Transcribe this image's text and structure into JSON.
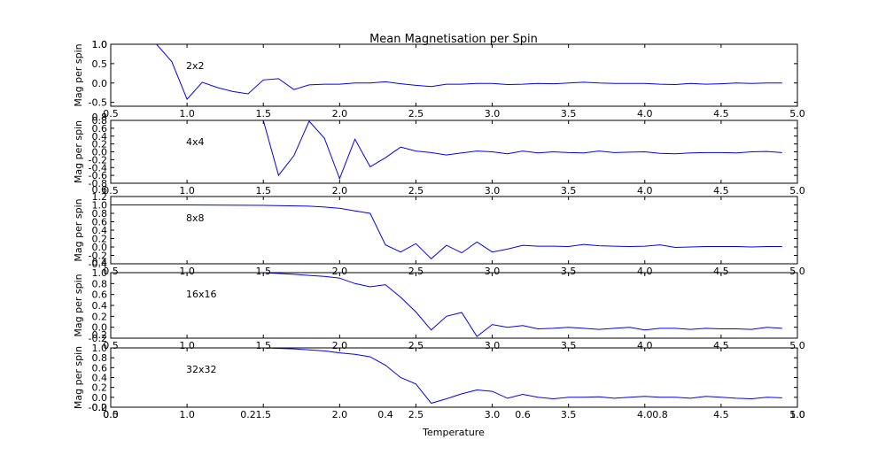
{
  "title": "Mean Magnetisation per Spin",
  "xlabel": "Temperature",
  "chart_data": [
    {
      "type": "line",
      "annotation": "2x2",
      "ylabel": "Mag per spin",
      "xlim": [
        0.5,
        5.0
      ],
      "ylim": [
        -0.6,
        1.0
      ],
      "xticks": [
        "0.5",
        "1.0",
        "1.5",
        "2.0",
        "2.5",
        "3.0",
        "3.5",
        "4.0",
        "4.5",
        "5.0"
      ],
      "yticks": [
        "-0.5",
        "0.0",
        "0.5",
        "1.0"
      ],
      "x": [
        0.5,
        0.6,
        0.7,
        0.8,
        0.9,
        1.0,
        1.1,
        1.2,
        1.3,
        1.4,
        1.5,
        1.6,
        1.7,
        1.8,
        1.9,
        2.0,
        2.1,
        2.2,
        2.3,
        2.4,
        2.5,
        2.6,
        2.7,
        2.8,
        2.9,
        3.0,
        3.1,
        3.2,
        3.3,
        3.4,
        3.5,
        3.6,
        3.7,
        3.8,
        3.9,
        4.0,
        4.1,
        4.2,
        4.3,
        4.4,
        4.5,
        4.6,
        4.7,
        4.8,
        4.9
      ],
      "y": [
        1.0,
        1.0,
        1.0,
        1.0,
        0.55,
        -0.42,
        0.02,
        -0.12,
        -0.22,
        -0.28,
        0.08,
        0.11,
        -0.17,
        -0.05,
        -0.03,
        -0.03,
        0.0,
        0.0,
        0.03,
        -0.02,
        -0.06,
        -0.09,
        -0.03,
        -0.03,
        -0.01,
        -0.01,
        -0.04,
        -0.03,
        -0.01,
        -0.02,
        0.0,
        0.02,
        0.0,
        -0.01,
        -0.01,
        -0.01,
        -0.03,
        -0.04,
        -0.01,
        -0.03,
        -0.02,
        0.0,
        -0.01,
        0.0,
        0.0
      ]
    },
    {
      "type": "line",
      "annotation": "4x4",
      "ylabel": "Mag per spin",
      "xlim": [
        0.5,
        5.0
      ],
      "ylim": [
        -0.8,
        0.8
      ],
      "xticks": [
        "0.5",
        "1.0",
        "1.5",
        "2.0",
        "2.5",
        "3.0",
        "3.5",
        "4.0",
        "4.5",
        "5.0"
      ],
      "yticks": [
        "-0.8",
        "-0.6",
        "-0.4",
        "-0.2",
        "0.0",
        "0.2",
        "0.4",
        "0.6",
        "0.8"
      ],
      "x": [
        1.5,
        1.6,
        1.7,
        1.8,
        1.9,
        2.0,
        2.1,
        2.2,
        2.3,
        2.4,
        2.5,
        2.6,
        2.7,
        2.8,
        2.9,
        3.0,
        3.1,
        3.2,
        3.3,
        3.4,
        3.5,
        3.6,
        3.7,
        3.8,
        3.9,
        4.0,
        4.1,
        4.2,
        4.3,
        4.4,
        4.5,
        4.6,
        4.7,
        4.8,
        4.9
      ],
      "y": [
        0.8,
        -0.6,
        -0.1,
        0.78,
        0.35,
        -0.68,
        0.32,
        -0.38,
        -0.15,
        0.12,
        0.02,
        -0.02,
        -0.08,
        -0.03,
        0.02,
        0.0,
        -0.05,
        0.02,
        -0.03,
        0.0,
        -0.02,
        -0.03,
        0.02,
        -0.02,
        -0.01,
        0.0,
        -0.04,
        -0.05,
        -0.03,
        -0.02,
        -0.02,
        -0.03,
        0.0,
        0.01,
        -0.02
      ]
    },
    {
      "type": "line",
      "annotation": "8x8",
      "ylabel": "Mag per spin",
      "xlim": [
        0.5,
        5.0
      ],
      "ylim": [
        -0.4,
        1.2
      ],
      "xticks": [
        "0.5",
        "1.0",
        "1.5",
        "2.0",
        "2.5",
        "3.0",
        "3.5",
        "4.0",
        "4.5",
        "5.0"
      ],
      "yticks": [
        "-0.4",
        "-0.2",
        "0.0",
        "0.2",
        "0.4",
        "0.6",
        "0.8",
        "1.0",
        "1.2"
      ],
      "x": [
        0.5,
        1.0,
        1.5,
        1.8,
        1.9,
        2.0,
        2.1,
        2.2,
        2.3,
        2.4,
        2.5,
        2.6,
        2.7,
        2.8,
        2.9,
        3.0,
        3.1,
        3.2,
        3.3,
        3.4,
        3.5,
        3.6,
        3.7,
        3.8,
        3.9,
        4.0,
        4.1,
        4.2,
        4.3,
        4.4,
        4.5,
        4.6,
        4.7,
        4.8,
        4.9
      ],
      "y": [
        1.0,
        1.0,
        0.99,
        0.97,
        0.95,
        0.92,
        0.86,
        0.8,
        0.05,
        -0.12,
        0.08,
        -0.28,
        0.04,
        -0.14,
        0.12,
        -0.12,
        -0.05,
        0.04,
        0.02,
        0.02,
        0.01,
        0.06,
        0.03,
        0.02,
        0.01,
        0.02,
        0.05,
        -0.01,
        0.0,
        0.01,
        0.01,
        0.01,
        0.0,
        0.01,
        0.01
      ]
    },
    {
      "type": "line",
      "annotation": "16x16",
      "ylabel": "Mag per spin",
      "xlim": [
        0.5,
        5.0
      ],
      "ylim": [
        -0.2,
        1.0
      ],
      "xticks": [
        "0.5",
        "1.0",
        "1.5",
        "2.0",
        "2.5",
        "3.0",
        "3.5",
        "4.0",
        "4.5",
        "5.0"
      ],
      "yticks": [
        "-0.2",
        "0.0",
        "0.2",
        "0.4",
        "0.6",
        "0.8",
        "1.0"
      ],
      "x": [
        0.5,
        1.0,
        1.5,
        1.7,
        1.8,
        1.9,
        2.0,
        2.1,
        2.2,
        2.3,
        2.4,
        2.5,
        2.6,
        2.7,
        2.8,
        2.9,
        3.0,
        3.1,
        3.2,
        3.3,
        3.4,
        3.5,
        3.6,
        3.7,
        3.8,
        3.9,
        4.0,
        4.1,
        4.2,
        4.3,
        4.4,
        4.5,
        4.6,
        4.7,
        4.8,
        4.9
      ],
      "y": [
        1.0,
        1.0,
        1.0,
        0.97,
        0.95,
        0.93,
        0.9,
        0.8,
        0.74,
        0.78,
        0.55,
        0.28,
        -0.05,
        0.2,
        0.27,
        -0.17,
        0.05,
        0.0,
        0.03,
        -0.03,
        -0.02,
        0.0,
        -0.02,
        -0.04,
        -0.02,
        0.0,
        -0.05,
        -0.02,
        -0.02,
        -0.04,
        -0.02,
        -0.03,
        -0.03,
        -0.04,
        0.0,
        -0.02
      ]
    },
    {
      "type": "line",
      "annotation": "32x32",
      "ylabel": "Mag per spin",
      "xlim": [
        0.5,
        5.0
      ],
      "ylim": [
        -0.2,
        1.0
      ],
      "xticks": [
        "0.5",
        "1.0",
        "1.5",
        "2.0",
        "2.5",
        "3.0",
        "3.5",
        "4.0",
        "4.5",
        "5.0"
      ],
      "yticks": [
        "-0.2",
        "0.0",
        "0.2",
        "0.4",
        "0.6",
        "0.8",
        "1.0"
      ],
      "x": [
        0.5,
        1.0,
        1.5,
        1.7,
        1.8,
        1.9,
        2.0,
        2.1,
        2.2,
        2.3,
        2.4,
        2.5,
        2.6,
        2.7,
        2.8,
        2.9,
        3.0,
        3.1,
        3.2,
        3.3,
        3.4,
        3.5,
        3.6,
        3.7,
        3.8,
        3.9,
        4.0,
        4.1,
        4.2,
        4.3,
        4.4,
        4.5,
        4.6,
        4.7,
        4.8,
        4.9
      ],
      "y": [
        1.0,
        1.0,
        1.0,
        0.98,
        0.96,
        0.94,
        0.9,
        0.87,
        0.82,
        0.65,
        0.4,
        0.27,
        -0.12,
        -0.03,
        0.07,
        0.15,
        0.12,
        -0.02,
        0.06,
        0.0,
        -0.03,
        0.0,
        0.0,
        0.01,
        -0.02,
        0.0,
        0.02,
        0.0,
        0.0,
        -0.02,
        0.02,
        0.0,
        -0.02,
        -0.03,
        0.0,
        -0.01
      ]
    }
  ],
  "overlay_ticks": {
    "x": [
      "0.0",
      "0.2",
      "0.4",
      "0.6",
      "0.8",
      "1.0"
    ],
    "y": [
      "0.0",
      "0.2",
      "0.4",
      "0.6",
      "0.8",
      "1.0"
    ]
  }
}
